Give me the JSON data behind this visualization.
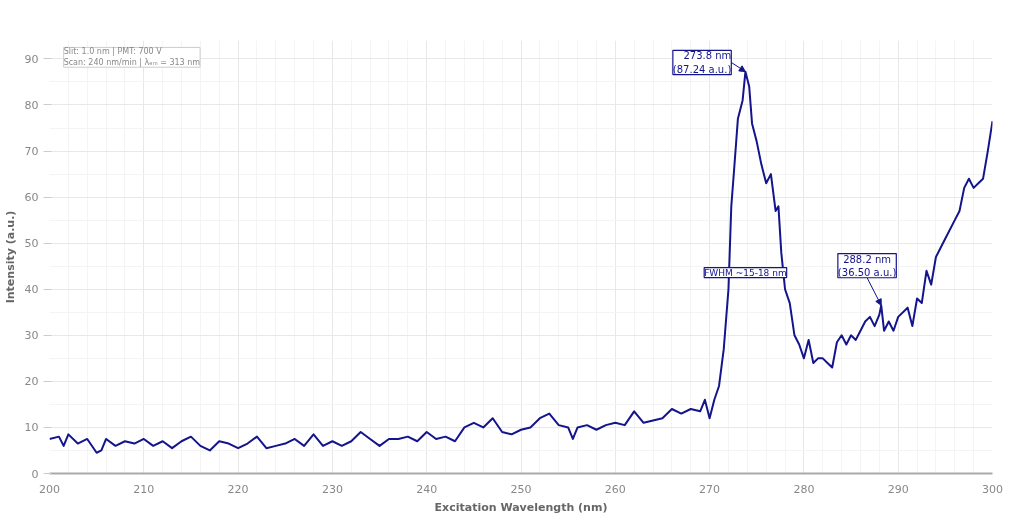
{
  "chart_data": {
    "type": "line",
    "xlabel": "Excitation Wavelength (nm)",
    "ylabel": "Intensity (a.u.)",
    "xlim": [
      200,
      300
    ],
    "ylim": [
      0,
      94
    ],
    "xticks": [
      200,
      210,
      220,
      230,
      240,
      250,
      260,
      270,
      280,
      290,
      300
    ],
    "yticks": [
      0,
      10,
      20,
      30,
      40,
      50,
      60,
      70,
      80,
      90
    ],
    "grid": true,
    "series": [
      {
        "color": "#14148c",
        "x": [
          200,
          201,
          201.5,
          202,
          203,
          204,
          205,
          205.5,
          206,
          207,
          208,
          209,
          210,
          211,
          212,
          213,
          214,
          215,
          216,
          217,
          218,
          219,
          220,
          221,
          222,
          223,
          224,
          225,
          226,
          227,
          228,
          229,
          230,
          231,
          232,
          233,
          234,
          235,
          236,
          237,
          238,
          239,
          240,
          241,
          242,
          243,
          244,
          245,
          246,
          247,
          248,
          249,
          250,
          251,
          252,
          253,
          254,
          255,
          255.5,
          256,
          257,
          258,
          259,
          260,
          261,
          262,
          263,
          264,
          265,
          266,
          267,
          268,
          269,
          269.5,
          270,
          270.5,
          271,
          271.5,
          272,
          272.3,
          272.6,
          273,
          273.5,
          273.8,
          274.2,
          274.5,
          275,
          275.5,
          276,
          276.5,
          277,
          277.3,
          277.6,
          278,
          278.5,
          279,
          279.5,
          280,
          280.5,
          281,
          281.5,
          282,
          282.5,
          283,
          283.5,
          284,
          284.5,
          285,
          285.5,
          286,
          286.5,
          287,
          287.5,
          288,
          288.2,
          288.5,
          289,
          289.5,
          290,
          291,
          291.5,
          292,
          292.5,
          293,
          293.5,
          294,
          294.5,
          295,
          296,
          296.5,
          297,
          297.5,
          298,
          298.5,
          299,
          299.5,
          300
        ],
        "values": [
          7.5,
          8,
          6,
          8.5,
          6.5,
          7.5,
          4.5,
          5,
          7.5,
          6,
          7,
          6.5,
          7.5,
          6,
          7,
          5.5,
          7,
          8,
          6,
          5,
          7,
          6.5,
          5.5,
          6.5,
          8,
          5.5,
          6,
          6.5,
          7.5,
          6,
          8.5,
          6,
          7,
          6,
          7,
          9,
          7.5,
          6,
          7.5,
          7.5,
          8,
          7,
          9,
          7.5,
          8,
          7,
          10,
          11,
          10,
          12,
          9,
          8.5,
          9.5,
          10,
          12,
          13,
          10.5,
          10,
          7.5,
          10,
          10.5,
          9.5,
          10.5,
          11,
          10.5,
          13.5,
          11,
          11.5,
          12,
          14,
          13,
          14,
          13.5,
          16,
          12,
          16,
          19,
          27,
          40,
          58,
          66,
          77,
          81,
          87.24,
          84,
          76,
          72,
          67,
          63,
          65,
          57,
          58,
          48,
          40,
          37,
          30,
          28,
          25,
          29,
          24,
          25,
          25,
          24,
          23,
          28.5,
          30,
          28,
          30,
          29,
          31,
          33,
          34,
          32,
          34.5,
          36.5,
          31,
          33,
          31,
          34,
          36,
          32,
          38,
          37,
          44,
          41,
          47,
          49,
          51,
          55,
          57,
          62,
          64,
          62,
          63,
          64,
          70,
          76.5
        ]
      }
    ],
    "annotations": [
      {
        "text": "273.8 nm\n(87.24 a.u.)",
        "x": 273.8,
        "y": 87.24
      },
      {
        "text": "288.2 nm\n(36.50 a.u.)",
        "x": 288.2,
        "y": 36.5
      },
      "Slit: 1.0 nm | PMT: 700 V\nScan: 240 nm/min | λₑₘ = 313 nm",
      "FWHM ~15-18 nm"
    ]
  }
}
